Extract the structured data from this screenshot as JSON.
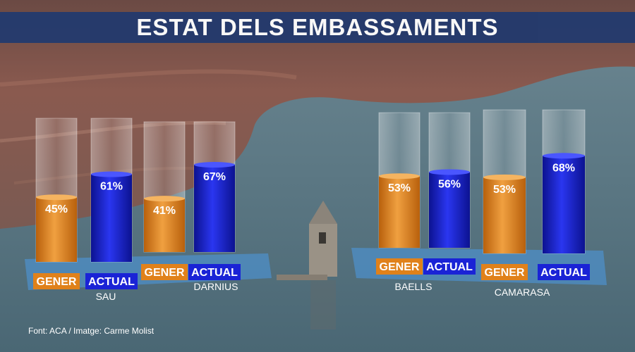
{
  "title": "ESTAT DELS EMBASSAMENTS",
  "credit": "Font: ACA / Imatge: Carme Molist",
  "colors": {
    "gener": "#e0811a",
    "actual": "#1a23d6",
    "title_bar": "#233a6d"
  },
  "chart_data": {
    "type": "bar",
    "title": "ESTAT DELS EMBASSAMENTS",
    "categories": [
      "SAU",
      "DARNIUS",
      "BAELLS",
      "CAMARASA"
    ],
    "series": [
      {
        "name": "GENER",
        "values": [
          45,
          41,
          53,
          53
        ]
      },
      {
        "name": "ACTUAL",
        "values": [
          61,
          67,
          56,
          68
        ]
      }
    ],
    "ylim": [
      0,
      100
    ],
    "unit": "%"
  }
}
